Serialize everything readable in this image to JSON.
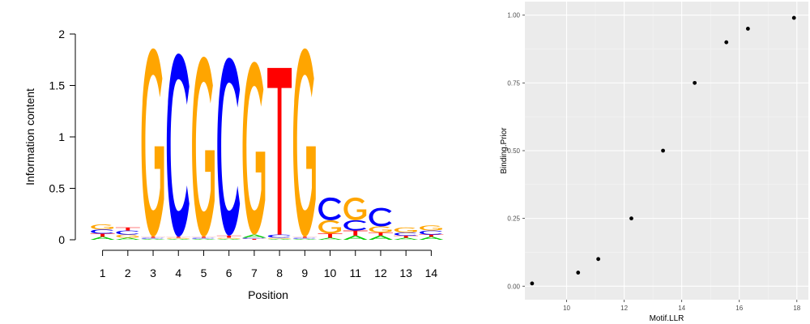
{
  "chart_data": [
    {
      "type": "sequence-logo",
      "xlabel": "Position",
      "ylabel": "Information content",
      "ylim": [
        0,
        2
      ],
      "yticks": [
        "0",
        "0.5",
        "1",
        "1.5",
        "2"
      ],
      "xticks": [
        "1",
        "2",
        "3",
        "4",
        "5",
        "6",
        "7",
        "8",
        "9",
        "10",
        "11",
        "12",
        "13",
        "14"
      ],
      "colors": {
        "A": "#00cc00",
        "C": "#0000ff",
        "G": "#ffa500",
        "T": "#ff0000"
      },
      "positions": [
        {
          "pos": 1,
          "letters": [
            {
              "l": "A",
              "h": 0.03
            },
            {
              "l": "T",
              "h": 0.03
            },
            {
              "l": "C",
              "h": 0.04
            },
            {
              "l": "G",
              "h": 0.05
            }
          ]
        },
        {
          "pos": 2,
          "letters": [
            {
              "l": "A",
              "h": 0.02
            },
            {
              "l": "G",
              "h": 0.03
            },
            {
              "l": "C",
              "h": 0.04
            },
            {
              "l": "T",
              "h": 0.03
            }
          ]
        },
        {
          "pos": 3,
          "letters": [
            {
              "l": "A",
              "h": 0.01
            },
            {
              "l": "C",
              "h": 0.01
            },
            {
              "l": "T",
              "h": 0.01
            },
            {
              "l": "G",
              "h": 1.83
            }
          ]
        },
        {
          "pos": 4,
          "letters": [
            {
              "l": "A",
              "h": 0.01
            },
            {
              "l": "G",
              "h": 0.01
            },
            {
              "l": "T",
              "h": 0.01
            },
            {
              "l": "C",
              "h": 1.78
            }
          ]
        },
        {
          "pos": 5,
          "letters": [
            {
              "l": "A",
              "h": 0.01
            },
            {
              "l": "C",
              "h": 0.01
            },
            {
              "l": "T",
              "h": 0.01
            },
            {
              "l": "G",
              "h": 1.75
            }
          ]
        },
        {
          "pos": 6,
          "letters": [
            {
              "l": "A",
              "h": 0.01
            },
            {
              "l": "G",
              "h": 0.01
            },
            {
              "l": "T",
              "h": 0.02
            },
            {
              "l": "C",
              "h": 1.73
            }
          ]
        },
        {
          "pos": 7,
          "letters": [
            {
              "l": "T",
              "h": 0.01
            },
            {
              "l": "C",
              "h": 0.01
            },
            {
              "l": "A",
              "h": 0.03
            },
            {
              "l": "G",
              "h": 1.68
            }
          ]
        },
        {
          "pos": 8,
          "letters": [
            {
              "l": "A",
              "h": 0.01
            },
            {
              "l": "G",
              "h": 0.01
            },
            {
              "l": "C",
              "h": 0.03
            },
            {
              "l": "T",
              "h": 1.62
            }
          ]
        },
        {
          "pos": 9,
          "letters": [
            {
              "l": "A",
              "h": 0.01
            },
            {
              "l": "C",
              "h": 0.01
            },
            {
              "l": "T",
              "h": 0.01
            },
            {
              "l": "G",
              "h": 1.83
            }
          ]
        },
        {
          "pos": 10,
          "letters": [
            {
              "l": "A",
              "h": 0.02
            },
            {
              "l": "T",
              "h": 0.04
            },
            {
              "l": "G",
              "h": 0.13
            },
            {
              "l": "C",
              "h": 0.22
            }
          ]
        },
        {
          "pos": 11,
          "letters": [
            {
              "l": "A",
              "h": 0.04
            },
            {
              "l": "T",
              "h": 0.05
            },
            {
              "l": "C",
              "h": 0.1
            },
            {
              "l": "G",
              "h": 0.22
            }
          ]
        },
        {
          "pos": 12,
          "letters": [
            {
              "l": "A",
              "h": 0.04
            },
            {
              "l": "T",
              "h": 0.03
            },
            {
              "l": "G",
              "h": 0.06
            },
            {
              "l": "C",
              "h": 0.18
            }
          ]
        },
        {
          "pos": 13,
          "letters": [
            {
              "l": "A",
              "h": 0.02
            },
            {
              "l": "T",
              "h": 0.02
            },
            {
              "l": "C",
              "h": 0.03
            },
            {
              "l": "G",
              "h": 0.05
            }
          ]
        },
        {
          "pos": 14,
          "letters": [
            {
              "l": "A",
              "h": 0.03
            },
            {
              "l": "T",
              "h": 0.02
            },
            {
              "l": "C",
              "h": 0.04
            },
            {
              "l": "G",
              "h": 0.05
            }
          ]
        }
      ]
    },
    {
      "type": "scatter",
      "xlabel": "Motif.LLR",
      "ylabel": "Binding.Prior",
      "xlim": [
        8.55,
        18.4
      ],
      "ylim": [
        -0.05,
        1.05
      ],
      "xticks": [
        {
          "v": 10,
          "label": "10"
        },
        {
          "v": 12,
          "label": "12"
        },
        {
          "v": 14,
          "label": "14"
        },
        {
          "v": 16,
          "label": "16"
        },
        {
          "v": 18,
          "label": "18"
        }
      ],
      "yticks": [
        {
          "v": 0,
          "label": "0.00"
        },
        {
          "v": 0.25,
          "label": "0.25"
        },
        {
          "v": 0.5,
          "label": "0.50"
        },
        {
          "v": 0.75,
          "label": "0.75"
        },
        {
          "v": 1,
          "label": "1.00"
        }
      ],
      "grid": true,
      "points": [
        {
          "x": 8.8,
          "y": 0.01
        },
        {
          "x": 10.4,
          "y": 0.05
        },
        {
          "x": 11.1,
          "y": 0.1
        },
        {
          "x": 12.25,
          "y": 0.25
        },
        {
          "x": 13.35,
          "y": 0.5
        },
        {
          "x": 14.45,
          "y": 0.75
        },
        {
          "x": 15.55,
          "y": 0.9
        },
        {
          "x": 16.3,
          "y": 0.95
        },
        {
          "x": 17.9,
          "y": 0.99
        }
      ]
    }
  ]
}
